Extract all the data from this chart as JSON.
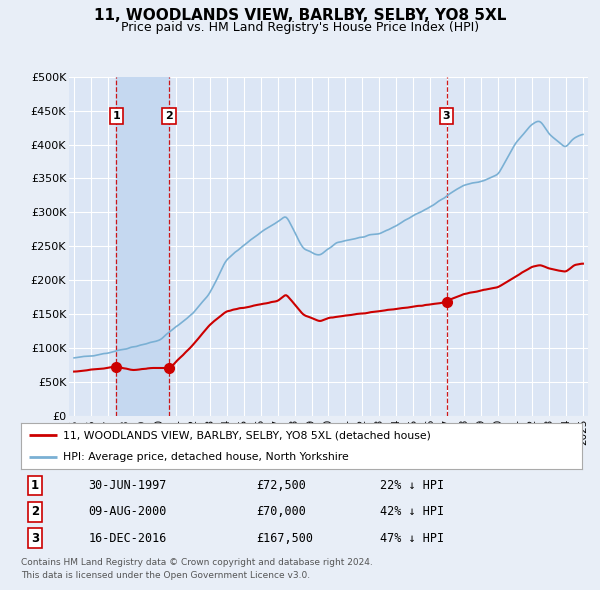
{
  "title": "11, WOODLANDS VIEW, BARLBY, SELBY, YO8 5XL",
  "subtitle": "Price paid vs. HM Land Registry's House Price Index (HPI)",
  "red_label": "11, WOODLANDS VIEW, BARLBY, SELBY, YO8 5XL (detached house)",
  "blue_label": "HPI: Average price, detached house, North Yorkshire",
  "footnote1": "Contains HM Land Registry data © Crown copyright and database right 2024.",
  "footnote2": "This data is licensed under the Open Government Licence v3.0.",
  "transactions": [
    {
      "num": 1,
      "date": "30-JUN-1997",
      "price": 72500,
      "pct": "22% ↓ HPI",
      "year": 1997.5
    },
    {
      "num": 2,
      "date": "09-AUG-2000",
      "price": 70000,
      "pct": "42% ↓ HPI",
      "year": 2000.62
    },
    {
      "num": 3,
      "date": "16-DEC-2016",
      "price": 167500,
      "pct": "47% ↓ HPI",
      "year": 2016.96
    }
  ],
  "ylim": [
    0,
    500000
  ],
  "yticks": [
    0,
    50000,
    100000,
    150000,
    200000,
    250000,
    300000,
    350000,
    400000,
    450000,
    500000
  ],
  "xlim": [
    1994.7,
    2025.3
  ],
  "background_color": "#e8eef7",
  "plot_bg": "#dce6f5",
  "grid_color": "#ffffff",
  "red_color": "#cc0000",
  "blue_color": "#7ab0d4",
  "shade_color": "#c5d8f0"
}
